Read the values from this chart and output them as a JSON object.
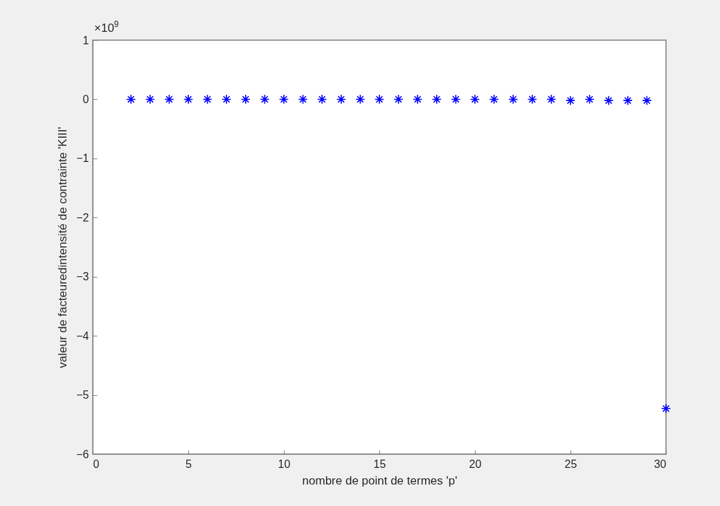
{
  "chart_data": {
    "type": "scatter",
    "xlabel": "nombre de point de termes 'p'",
    "ylabel": "valeur de facteuredintensité de contrainte 'KIII'",
    "annotations": [
      "×10$^{9}$"
    ],
    "x": [
      2,
      3,
      4,
      5,
      6,
      7,
      8,
      9,
      10,
      11,
      12,
      13,
      14,
      15,
      16,
      17,
      18,
      19,
      20,
      21,
      22,
      23,
      24,
      25,
      26,
      27,
      28,
      29,
      30
    ],
    "series": [
      {
        "color": "#0000ff",
        "values": [
          0,
          0,
          0,
          0,
          0,
          0,
          0,
          0,
          0,
          0,
          0,
          0,
          0,
          0,
          0,
          0,
          0,
          0,
          0,
          0,
          0,
          0,
          0,
          -0.02,
          0,
          -0.02,
          -0.02,
          -0.02,
          -5.23
        ]
      }
    ],
    "xlim": [
      0,
      30
    ],
    "xticks": [
      0,
      5,
      10,
      15,
      20,
      25,
      30
    ],
    "ylim": [
      -6,
      1
    ],
    "yticks": [
      -6,
      -5,
      -4,
      -3,
      -2,
      -1,
      0,
      1
    ],
    "grid": false,
    "marker": "cross"
  }
}
